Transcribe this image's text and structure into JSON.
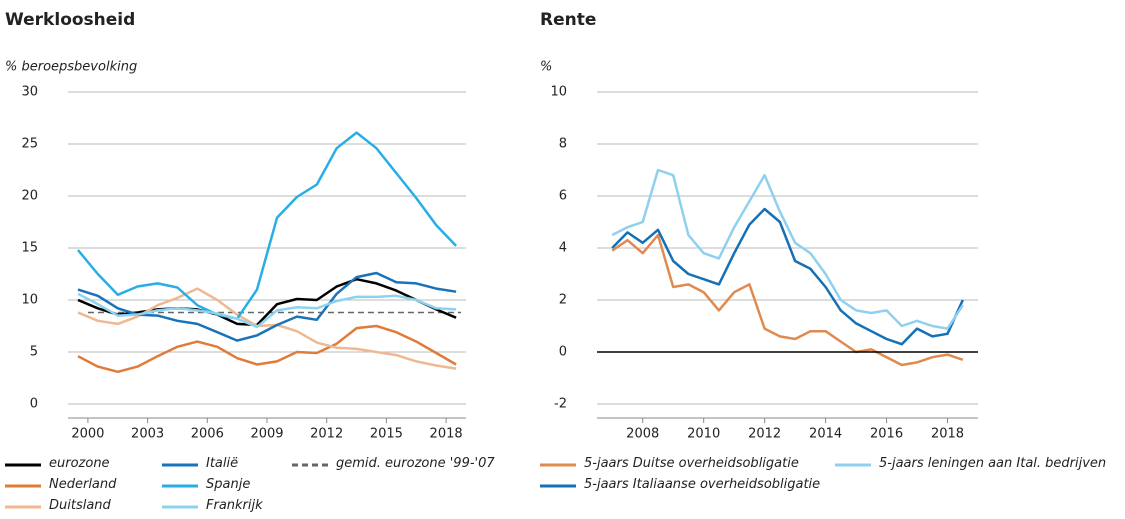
{
  "chart_data": [
    {
      "type": "line",
      "title": "Werkloosheid",
      "y_label": "% beroepsbevolking",
      "x": [
        1999.5,
        2000.5,
        2001.5,
        2002.5,
        2003.5,
        2004.5,
        2005.5,
        2006.5,
        2007.5,
        2008.5,
        2009.5,
        2010.5,
        2011.5,
        2012.5,
        2013.5,
        2014.5,
        2015.5,
        2016.5,
        2017.5,
        2018.5
      ],
      "xlim": [
        1999,
        2019
      ],
      "xticks": [
        2000,
        2003,
        2006,
        2009,
        2012,
        2015,
        2018
      ],
      "ylim": [
        0,
        30
      ],
      "yticks": [
        0,
        5,
        10,
        15,
        20,
        25,
        30
      ],
      "grid": true,
      "series": [
        {
          "name": "eurozone",
          "color": "#000000",
          "values": [
            10.0,
            9.2,
            8.6,
            8.8,
            9.1,
            9.2,
            9.1,
            8.6,
            7.7,
            7.6,
            9.6,
            10.1,
            10.0,
            11.3,
            12.0,
            11.6,
            10.9,
            10.0,
            9.1,
            8.3
          ]
        },
        {
          "name": "Nederland",
          "color": "#e07b39",
          "values": [
            4.6,
            3.6,
            3.1,
            3.6,
            4.6,
            5.5,
            6.0,
            5.5,
            4.4,
            3.8,
            4.1,
            5.0,
            4.9,
            5.8,
            7.3,
            7.5,
            6.9,
            6.0,
            4.9,
            3.8
          ]
        },
        {
          "name": "Duitsland",
          "color": "#f0b890",
          "values": [
            8.8,
            8.0,
            7.7,
            8.4,
            9.5,
            10.2,
            11.1,
            10.0,
            8.6,
            7.5,
            7.6,
            7.0,
            5.9,
            5.4,
            5.3,
            5.0,
            4.7,
            4.1,
            3.7,
            3.4
          ]
        },
        {
          "name": "Italië",
          "color": "#1a73b8",
          "values": [
            11.0,
            10.4,
            9.2,
            8.6,
            8.5,
            8.0,
            7.7,
            6.9,
            6.1,
            6.6,
            7.6,
            8.4,
            8.1,
            10.6,
            12.2,
            12.6,
            11.7,
            11.6,
            11.1,
            10.8
          ]
        },
        {
          "name": "Spanje",
          "color": "#27aee6",
          "values": [
            14.8,
            12.5,
            10.5,
            11.3,
            11.6,
            11.2,
            9.5,
            8.6,
            8.2,
            11.0,
            17.9,
            19.9,
            21.1,
            24.6,
            26.1,
            24.6,
            22.2,
            19.8,
            17.2,
            15.2
          ]
        },
        {
          "name": "Frankrijk",
          "color": "#8dd3f0",
          "values": [
            10.6,
            9.6,
            8.5,
            8.6,
            9.0,
            9.2,
            9.0,
            8.7,
            8.2,
            7.4,
            9.0,
            9.3,
            9.2,
            9.9,
            10.3,
            10.3,
            10.4,
            10.0,
            9.2,
            9.1
          ]
        }
      ],
      "hline": {
        "name": "gemid. eurozone '99-'07",
        "value": 8.8,
        "color": "#666666"
      }
    },
    {
      "type": "line",
      "title": "Rente",
      "y_label": "%",
      "x": [
        2007,
        2007.5,
        2008,
        2008.5,
        2009,
        2009.5,
        2010,
        2010.5,
        2011,
        2011.5,
        2012,
        2012.5,
        2013,
        2013.5,
        2014,
        2014.5,
        2015,
        2015.5,
        2016,
        2016.5,
        2017,
        2017.5,
        2018,
        2018.5
      ],
      "xlim": [
        2006.5,
        2019
      ],
      "xticks": [
        2008,
        2010,
        2012,
        2014,
        2016,
        2018
      ],
      "ylim": [
        -2,
        10
      ],
      "yticks": [
        -2,
        0,
        2,
        4,
        6,
        8,
        10
      ],
      "grid": true,
      "zero_line": true,
      "series": [
        {
          "name": "5-jaars Duitse overheidsobligatie",
          "color": "#e08a50",
          "values": [
            3.9,
            4.3,
            3.8,
            4.5,
            2.5,
            2.6,
            2.3,
            1.6,
            2.3,
            2.6,
            0.9,
            0.6,
            0.5,
            0.8,
            0.8,
            0.4,
            0.0,
            0.1,
            -0.2,
            -0.5,
            -0.4,
            -0.2,
            -0.1,
            -0.3
          ]
        },
        {
          "name": "5-jaars Italiaanse overheidsobligatie",
          "color": "#1570b5",
          "values": [
            4.0,
            4.6,
            4.2,
            4.7,
            3.5,
            3.0,
            2.8,
            2.6,
            3.8,
            4.9,
            5.5,
            5.0,
            3.5,
            3.2,
            2.5,
            1.6,
            1.1,
            0.8,
            0.5,
            0.3,
            0.9,
            0.6,
            0.7,
            2.0
          ]
        },
        {
          "name": "5-jaars leningen aan Ital. bedrijven",
          "color": "#8fd0ef",
          "values": [
            4.5,
            4.8,
            5.0,
            7.0,
            6.8,
            4.5,
            3.8,
            3.6,
            4.8,
            5.8,
            6.8,
            5.4,
            4.2,
            3.8,
            3.0,
            2.0,
            1.6,
            1.5,
            1.6,
            1.0,
            1.2,
            1.0,
            0.9,
            1.8
          ]
        }
      ]
    }
  ]
}
